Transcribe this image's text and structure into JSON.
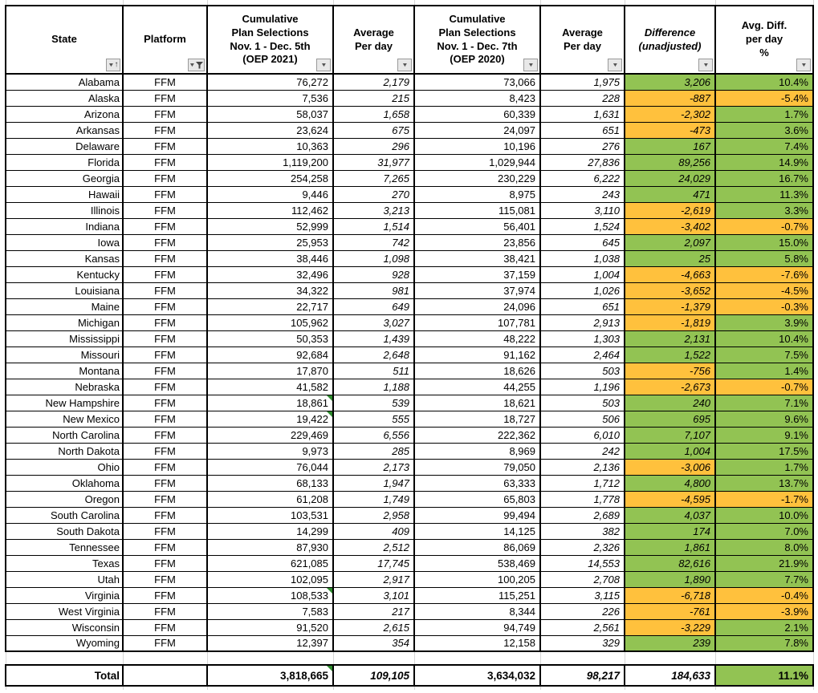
{
  "colors": {
    "green": "#92C353",
    "orange": "#FFC13D",
    "marker": "#2E8B2E"
  },
  "icons": {
    "dropdown": "▼",
    "sort_asc": "↑",
    "funnel": "funnel-shape"
  },
  "header": {
    "columns": [
      {
        "label": "State",
        "filter": "sort-asc"
      },
      {
        "label": "Platform",
        "filter": "funnel"
      },
      {
        "label": "Cumulative\nPlan Selections\nNov. 1 - Dec. 5th\n(OEP 2021)",
        "filter": "dropdown"
      },
      {
        "label": "Average\nPer day",
        "filter": "dropdown"
      },
      {
        "label": "Cumulative\nPlan Selections\nNov. 1 - Dec. 7th\n(OEP 2020)",
        "filter": "dropdown"
      },
      {
        "label": "Average\nPer day",
        "filter": "dropdown"
      },
      {
        "label": "Difference\n(unadjusted)",
        "filter": "dropdown"
      },
      {
        "label": "Avg. Diff.\nper day\n%",
        "filter": "dropdown"
      }
    ]
  },
  "rows": [
    {
      "state": "Alabama",
      "platform": "FFM",
      "cum_2021": "76,272",
      "avg_2021": "2,179",
      "cum_2020": "73,066",
      "avg_2020": "1,975",
      "diff": "3,206",
      "diff_color": "green",
      "pct": "10.4%",
      "pct_color": "green",
      "marker": false
    },
    {
      "state": "Alaska",
      "platform": "FFM",
      "cum_2021": "7,536",
      "avg_2021": "215",
      "cum_2020": "8,423",
      "avg_2020": "228",
      "diff": "-887",
      "diff_color": "orange",
      "pct": "-5.4%",
      "pct_color": "orange",
      "marker": false
    },
    {
      "state": "Arizona",
      "platform": "FFM",
      "cum_2021": "58,037",
      "avg_2021": "1,658",
      "cum_2020": "60,339",
      "avg_2020": "1,631",
      "diff": "-2,302",
      "diff_color": "orange",
      "pct": "1.7%",
      "pct_color": "green",
      "marker": false
    },
    {
      "state": "Arkansas",
      "platform": "FFM",
      "cum_2021": "23,624",
      "avg_2021": "675",
      "cum_2020": "24,097",
      "avg_2020": "651",
      "diff": "-473",
      "diff_color": "orange",
      "pct": "3.6%",
      "pct_color": "green",
      "marker": false
    },
    {
      "state": "Delaware",
      "platform": "FFM",
      "cum_2021": "10,363",
      "avg_2021": "296",
      "cum_2020": "10,196",
      "avg_2020": "276",
      "diff": "167",
      "diff_color": "green",
      "pct": "7.4%",
      "pct_color": "green",
      "marker": false
    },
    {
      "state": "Florida",
      "platform": "FFM",
      "cum_2021": "1,119,200",
      "avg_2021": "31,977",
      "cum_2020": "1,029,944",
      "avg_2020": "27,836",
      "diff": "89,256",
      "diff_color": "green",
      "pct": "14.9%",
      "pct_color": "green",
      "marker": false
    },
    {
      "state": "Georgia",
      "platform": "FFM",
      "cum_2021": "254,258",
      "avg_2021": "7,265",
      "cum_2020": "230,229",
      "avg_2020": "6,222",
      "diff": "24,029",
      "diff_color": "green",
      "pct": "16.7%",
      "pct_color": "green",
      "marker": false
    },
    {
      "state": "Hawaii",
      "platform": "FFM",
      "cum_2021": "9,446",
      "avg_2021": "270",
      "cum_2020": "8,975",
      "avg_2020": "243",
      "diff": "471",
      "diff_color": "green",
      "pct": "11.3%",
      "pct_color": "green",
      "marker": false
    },
    {
      "state": "Illinois",
      "platform": "FFM",
      "cum_2021": "112,462",
      "avg_2021": "3,213",
      "cum_2020": "115,081",
      "avg_2020": "3,110",
      "diff": "-2,619",
      "diff_color": "orange",
      "pct": "3.3%",
      "pct_color": "green",
      "marker": false
    },
    {
      "state": "Indiana",
      "platform": "FFM",
      "cum_2021": "52,999",
      "avg_2021": "1,514",
      "cum_2020": "56,401",
      "avg_2020": "1,524",
      "diff": "-3,402",
      "diff_color": "orange",
      "pct": "-0.7%",
      "pct_color": "orange",
      "marker": false
    },
    {
      "state": "Iowa",
      "platform": "FFM",
      "cum_2021": "25,953",
      "avg_2021": "742",
      "cum_2020": "23,856",
      "avg_2020": "645",
      "diff": "2,097",
      "diff_color": "green",
      "pct": "15.0%",
      "pct_color": "green",
      "marker": false
    },
    {
      "state": "Kansas",
      "platform": "FFM",
      "cum_2021": "38,446",
      "avg_2021": "1,098",
      "cum_2020": "38,421",
      "avg_2020": "1,038",
      "diff": "25",
      "diff_color": "green",
      "pct": "5.8%",
      "pct_color": "green",
      "marker": false
    },
    {
      "state": "Kentucky",
      "platform": "FFM",
      "cum_2021": "32,496",
      "avg_2021": "928",
      "cum_2020": "37,159",
      "avg_2020": "1,004",
      "diff": "-4,663",
      "diff_color": "orange",
      "pct": "-7.6%",
      "pct_color": "orange",
      "marker": false
    },
    {
      "state": "Louisiana",
      "platform": "FFM",
      "cum_2021": "34,322",
      "avg_2021": "981",
      "cum_2020": "37,974",
      "avg_2020": "1,026",
      "diff": "-3,652",
      "diff_color": "orange",
      "pct": "-4.5%",
      "pct_color": "orange",
      "marker": false
    },
    {
      "state": "Maine",
      "platform": "FFM",
      "cum_2021": "22,717",
      "avg_2021": "649",
      "cum_2020": "24,096",
      "avg_2020": "651",
      "diff": "-1,379",
      "diff_color": "orange",
      "pct": "-0.3%",
      "pct_color": "orange",
      "marker": false
    },
    {
      "state": "Michigan",
      "platform": "FFM",
      "cum_2021": "105,962",
      "avg_2021": "3,027",
      "cum_2020": "107,781",
      "avg_2020": "2,913",
      "diff": "-1,819",
      "diff_color": "orange",
      "pct": "3.9%",
      "pct_color": "green",
      "marker": false
    },
    {
      "state": "Mississippi",
      "platform": "FFM",
      "cum_2021": "50,353",
      "avg_2021": "1,439",
      "cum_2020": "48,222",
      "avg_2020": "1,303",
      "diff": "2,131",
      "diff_color": "green",
      "pct": "10.4%",
      "pct_color": "green",
      "marker": false
    },
    {
      "state": "Missouri",
      "platform": "FFM",
      "cum_2021": "92,684",
      "avg_2021": "2,648",
      "cum_2020": "91,162",
      "avg_2020": "2,464",
      "diff": "1,522",
      "diff_color": "green",
      "pct": "7.5%",
      "pct_color": "green",
      "marker": false
    },
    {
      "state": "Montana",
      "platform": "FFM",
      "cum_2021": "17,870",
      "avg_2021": "511",
      "cum_2020": "18,626",
      "avg_2020": "503",
      "diff": "-756",
      "diff_color": "orange",
      "pct": "1.4%",
      "pct_color": "green",
      "marker": false
    },
    {
      "state": "Nebraska",
      "platform": "FFM",
      "cum_2021": "41,582",
      "avg_2021": "1,188",
      "cum_2020": "44,255",
      "avg_2020": "1,196",
      "diff": "-2,673",
      "diff_color": "orange",
      "pct": "-0.7%",
      "pct_color": "orange",
      "marker": false
    },
    {
      "state": "New Hampshire",
      "platform": "FFM",
      "cum_2021": "18,861",
      "avg_2021": "539",
      "cum_2020": "18,621",
      "avg_2020": "503",
      "diff": "240",
      "diff_color": "green",
      "pct": "7.1%",
      "pct_color": "green",
      "marker": true
    },
    {
      "state": "New Mexico",
      "platform": "FFM",
      "cum_2021": "19,422",
      "avg_2021": "555",
      "cum_2020": "18,727",
      "avg_2020": "506",
      "diff": "695",
      "diff_color": "green",
      "pct": "9.6%",
      "pct_color": "green",
      "marker": true
    },
    {
      "state": "North Carolina",
      "platform": "FFM",
      "cum_2021": "229,469",
      "avg_2021": "6,556",
      "cum_2020": "222,362",
      "avg_2020": "6,010",
      "diff": "7,107",
      "diff_color": "green",
      "pct": "9.1%",
      "pct_color": "green",
      "marker": false
    },
    {
      "state": "North Dakota",
      "platform": "FFM",
      "cum_2021": "9,973",
      "avg_2021": "285",
      "cum_2020": "8,969",
      "avg_2020": "242",
      "diff": "1,004",
      "diff_color": "green",
      "pct": "17.5%",
      "pct_color": "green",
      "marker": false
    },
    {
      "state": "Ohio",
      "platform": "FFM",
      "cum_2021": "76,044",
      "avg_2021": "2,173",
      "cum_2020": "79,050",
      "avg_2020": "2,136",
      "diff": "-3,006",
      "diff_color": "orange",
      "pct": "1.7%",
      "pct_color": "green",
      "marker": false
    },
    {
      "state": "Oklahoma",
      "platform": "FFM",
      "cum_2021": "68,133",
      "avg_2021": "1,947",
      "cum_2020": "63,333",
      "avg_2020": "1,712",
      "diff": "4,800",
      "diff_color": "green",
      "pct": "13.7%",
      "pct_color": "green",
      "marker": false
    },
    {
      "state": "Oregon",
      "platform": "FFM",
      "cum_2021": "61,208",
      "avg_2021": "1,749",
      "cum_2020": "65,803",
      "avg_2020": "1,778",
      "diff": "-4,595",
      "diff_color": "orange",
      "pct": "-1.7%",
      "pct_color": "orange",
      "marker": false
    },
    {
      "state": "South Carolina",
      "platform": "FFM",
      "cum_2021": "103,531",
      "avg_2021": "2,958",
      "cum_2020": "99,494",
      "avg_2020": "2,689",
      "diff": "4,037",
      "diff_color": "green",
      "pct": "10.0%",
      "pct_color": "green",
      "marker": false
    },
    {
      "state": "South Dakota",
      "platform": "FFM",
      "cum_2021": "14,299",
      "avg_2021": "409",
      "cum_2020": "14,125",
      "avg_2020": "382",
      "diff": "174",
      "diff_color": "green",
      "pct": "7.0%",
      "pct_color": "green",
      "marker": false
    },
    {
      "state": "Tennessee",
      "platform": "FFM",
      "cum_2021": "87,930",
      "avg_2021": "2,512",
      "cum_2020": "86,069",
      "avg_2020": "2,326",
      "diff": "1,861",
      "diff_color": "green",
      "pct": "8.0%",
      "pct_color": "green",
      "marker": false
    },
    {
      "state": "Texas",
      "platform": "FFM",
      "cum_2021": "621,085",
      "avg_2021": "17,745",
      "cum_2020": "538,469",
      "avg_2020": "14,553",
      "diff": "82,616",
      "diff_color": "green",
      "pct": "21.9%",
      "pct_color": "green",
      "marker": false
    },
    {
      "state": "Utah",
      "platform": "FFM",
      "cum_2021": "102,095",
      "avg_2021": "2,917",
      "cum_2020": "100,205",
      "avg_2020": "2,708",
      "diff": "1,890",
      "diff_color": "green",
      "pct": "7.7%",
      "pct_color": "green",
      "marker": false
    },
    {
      "state": "Virginia",
      "platform": "FFM",
      "cum_2021": "108,533",
      "avg_2021": "3,101",
      "cum_2020": "115,251",
      "avg_2020": "3,115",
      "diff": "-6,718",
      "diff_color": "orange",
      "pct": "-0.4%",
      "pct_color": "orange",
      "marker": true
    },
    {
      "state": "West Virginia",
      "platform": "FFM",
      "cum_2021": "7,583",
      "avg_2021": "217",
      "cum_2020": "8,344",
      "avg_2020": "226",
      "diff": "-761",
      "diff_color": "orange",
      "pct": "-3.9%",
      "pct_color": "orange",
      "marker": false
    },
    {
      "state": "Wisconsin",
      "platform": "FFM",
      "cum_2021": "91,520",
      "avg_2021": "2,615",
      "cum_2020": "94,749",
      "avg_2020": "2,561",
      "diff": "-3,229",
      "diff_color": "orange",
      "pct": "2.1%",
      "pct_color": "green",
      "marker": false
    },
    {
      "state": "Wyoming",
      "platform": "FFM",
      "cum_2021": "12,397",
      "avg_2021": "354",
      "cum_2020": "12,158",
      "avg_2020": "329",
      "diff": "239",
      "diff_color": "green",
      "pct": "7.8%",
      "pct_color": "green",
      "marker": false
    }
  ],
  "total": {
    "label": "Total",
    "platform": "",
    "cum_2021": "3,818,665",
    "avg_2021": "109,105",
    "cum_2020": "3,634,032",
    "avg_2020": "98,217",
    "diff": "184,633",
    "pct": "11.1%",
    "pct_color": "green",
    "marker": true
  }
}
